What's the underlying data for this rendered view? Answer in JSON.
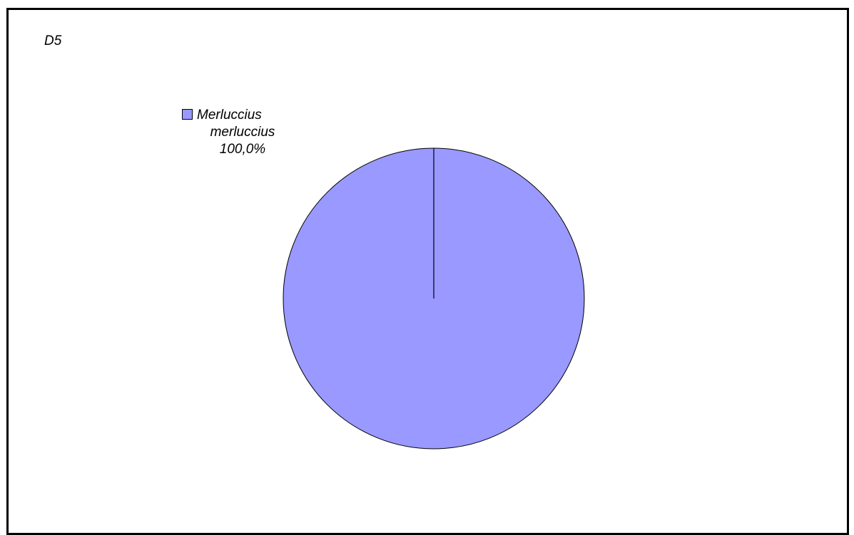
{
  "chart_data": {
    "type": "pie",
    "title": "D5",
    "categories": [
      "Merluccius merluccius"
    ],
    "values": [
      100.0
    ],
    "labels": [
      {
        "category_line1": "Merluccius",
        "category_line2": "merluccius",
        "percent": "100,0%"
      }
    ],
    "colors": [
      "#9999ff"
    ],
    "legend": "none"
  }
}
